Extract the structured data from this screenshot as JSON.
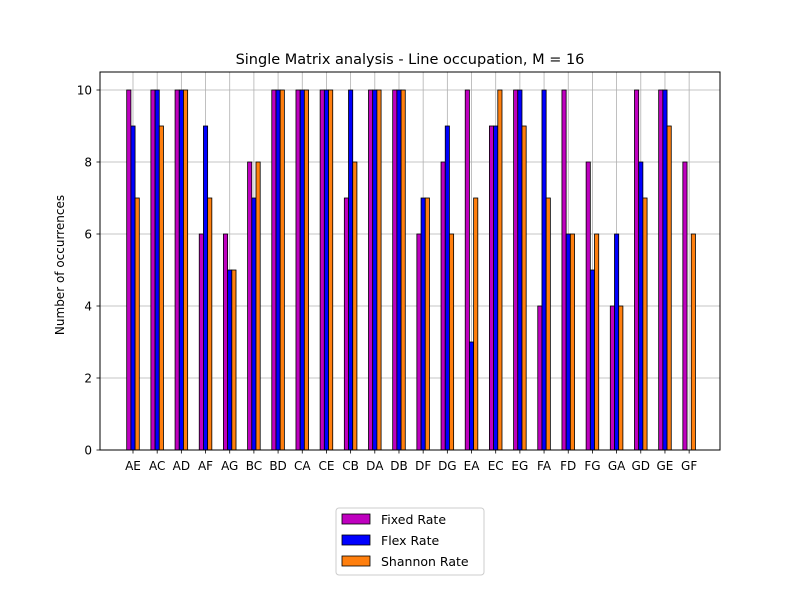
{
  "chart_data": {
    "type": "bar",
    "title": "Single Matrix analysis - Line occupation, M = 16",
    "xlabel": "",
    "ylabel": "Number of occurrences",
    "ylim": [
      0,
      10.5
    ],
    "yticks": [
      0,
      2,
      4,
      6,
      8,
      10
    ],
    "grid": true,
    "legend_position": "below-center",
    "categories": [
      "AE",
      "AC",
      "AD",
      "AF",
      "AG",
      "BC",
      "BD",
      "CA",
      "CE",
      "CB",
      "DA",
      "DB",
      "DF",
      "DG",
      "EA",
      "EC",
      "EG",
      "FA",
      "FD",
      "FG",
      "GA",
      "GD",
      "GE",
      "GF"
    ],
    "series": [
      {
        "name": "Fixed Rate",
        "color": "#bf00bf",
        "values": [
          10,
          10,
          10,
          6,
          6,
          8,
          10,
          10,
          10,
          7,
          10,
          10,
          6,
          8,
          10,
          9,
          10,
          4,
          10,
          8,
          4,
          10,
          10,
          8
        ]
      },
      {
        "name": "Flex Rate",
        "color": "#0000ff",
        "values": [
          9,
          10,
          10,
          9,
          5,
          7,
          10,
          10,
          10,
          10,
          10,
          10,
          7,
          9,
          3,
          9,
          10,
          10,
          6,
          5,
          6,
          8,
          10,
          0
        ]
      },
      {
        "name": "Shannon Rate",
        "color": "#ff7f0e",
        "values": [
          7,
          9,
          10,
          7,
          5,
          8,
          10,
          10,
          10,
          8,
          10,
          10,
          7,
          6,
          7,
          10,
          9,
          7,
          6,
          6,
          4,
          7,
          9,
          6
        ]
      }
    ]
  }
}
